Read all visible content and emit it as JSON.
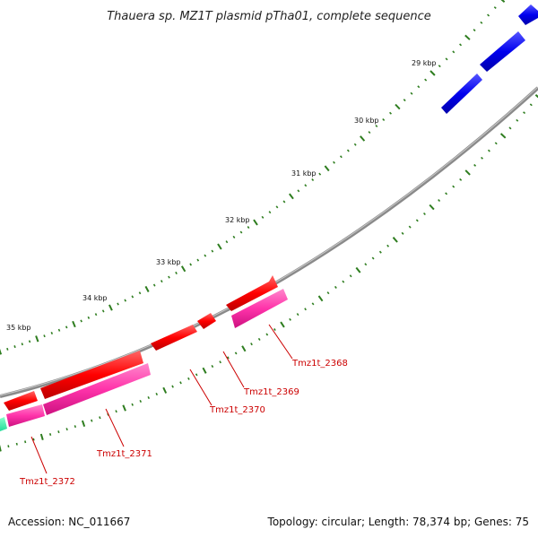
{
  "title": "Thauera sp. MZ1T plasmid pTha01, complete sequence",
  "footer": {
    "accession": "Accession: NC_011667",
    "summary": "Topology: circular; Length: 78,374 bp; Genes: 75"
  },
  "colors": {
    "backbone": "#8a8a8a",
    "minor_tick": "#2e7d1f",
    "gene_forward": "#ff0000",
    "gene_reverse": "#0000ee",
    "cds_track": "#ff33aa",
    "rna_track": "#33ffaa",
    "gene_label": "#cc0000"
  },
  "scale_labels": [
    "29 kbp",
    "30 kbp",
    "31 kbp",
    "32 kbp",
    "33 kbp",
    "34 kbp",
    "35 kbp"
  ],
  "gene_labels": [
    "Tmz1t_2368",
    "Tmz1t_2369",
    "Tmz1t_2370",
    "Tmz1t_2371",
    "Tmz1t_2372"
  ]
}
